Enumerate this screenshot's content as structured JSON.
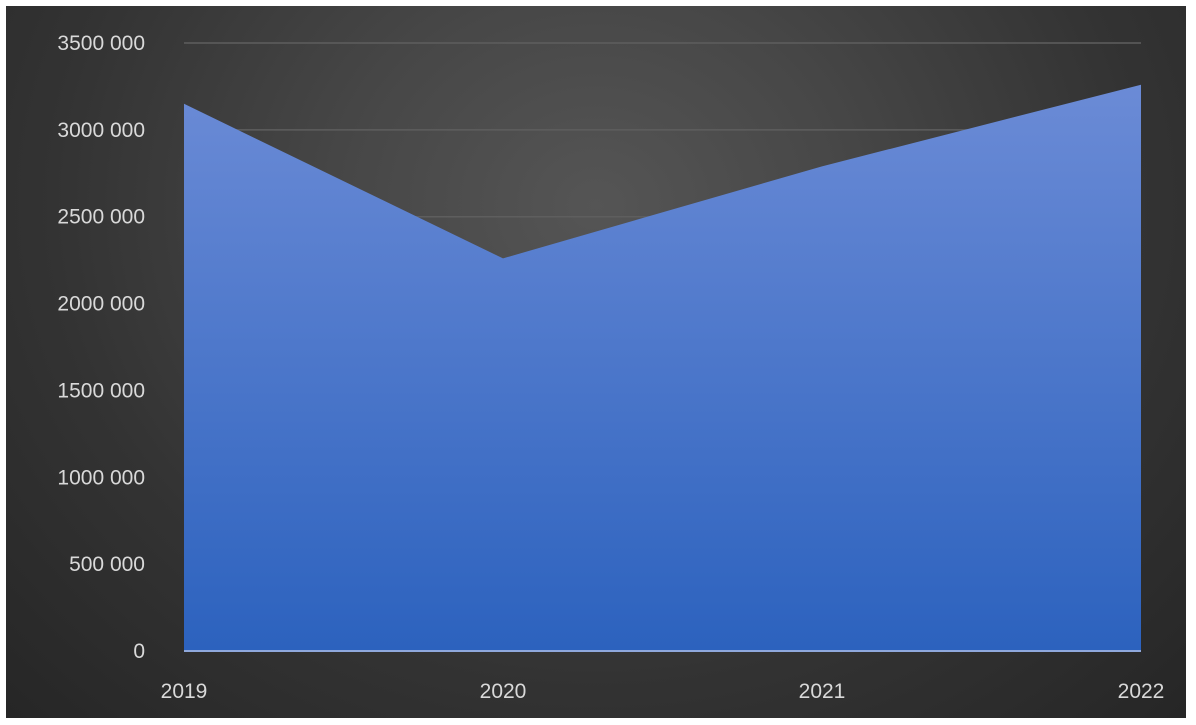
{
  "chart_data": {
    "type": "area",
    "x": [
      "2019",
      "2020",
      "2021",
      "2022"
    ],
    "series": [
      {
        "values": [
          3150000,
          2260000,
          2790000,
          3260000
        ]
      }
    ],
    "y_tick_labels": [
      "0",
      "500 000",
      "1000 000",
      "1500 000",
      "2000 000",
      "2500 000",
      "3000 000",
      "3500 000"
    ],
    "y_ticks": [
      0,
      500000,
      1000000,
      1500000,
      2000000,
      2500000,
      3000000,
      3500000
    ],
    "ylim": [
      0,
      3500000
    ],
    "grid": true,
    "legend": "none",
    "colors": {
      "fill_top": "#6b8bd6",
      "fill_bottom": "#2c62be",
      "grid": "#5e5e5e",
      "axis": "#8fa8dc",
      "text": "#d9d9d9"
    }
  }
}
